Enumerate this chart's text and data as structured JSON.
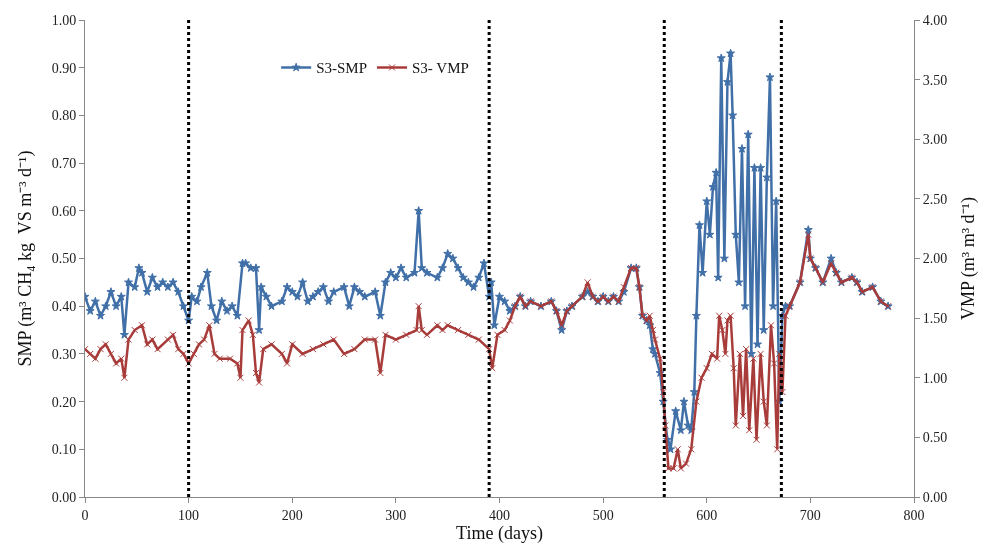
{
  "chart_data": {
    "type": "line",
    "xlabel": "Time (days)",
    "ylabel": "SMP (m³ CH₄ kg  VS m⁻³ d⁻¹)",
    "y2label": "VMP (m³ m³ d⁻¹)",
    "xlim": [
      0,
      800
    ],
    "xticks": [
      0,
      100,
      200,
      300,
      400,
      500,
      600,
      700,
      800
    ],
    "ylim": [
      0,
      1
    ],
    "yticks": [
      {
        "value": 0,
        "label": "0.00"
      },
      {
        "value": 0.1,
        "label": "0.10"
      },
      {
        "value": 0.2,
        "label": "0.20"
      },
      {
        "value": 0.3,
        "label": "0.30"
      },
      {
        "value": 0.4,
        "label": "0.40"
      },
      {
        "value": 0.5,
        "label": "0.50"
      },
      {
        "value": 0.6,
        "label": "0.60"
      },
      {
        "value": 0.7,
        "label": "0.70"
      },
      {
        "value": 0.8,
        "label": "0.80"
      },
      {
        "value": 0.9,
        "label": "0.90"
      },
      {
        "value": 1,
        "label": "1.00"
      }
    ],
    "y2lim": [
      0,
      4
    ],
    "y2ticks": [
      {
        "value": 0,
        "label": "0.00"
      },
      {
        "value": 0.5,
        "label": "0.50"
      },
      {
        "value": 1,
        "label": "1.00"
      },
      {
        "value": 1.5,
        "label": "1.50"
      },
      {
        "value": 2,
        "label": "2.00"
      },
      {
        "value": 2.5,
        "label": "2.50"
      },
      {
        "value": 3,
        "label": "3.00"
      },
      {
        "value": 3.5,
        "label": "3.50"
      },
      {
        "value": 4,
        "label": "4.00"
      }
    ],
    "legend": "top",
    "line_style": "solid",
    "ref_lines": [
      {
        "axis": "x",
        "value": 100,
        "color": "#000000",
        "line_style": "dotted"
      },
      {
        "axis": "x",
        "value": 390,
        "color": "#000000",
        "line_style": "dotted"
      },
      {
        "axis": "x",
        "value": 559,
        "color": "#000000",
        "line_style": "dotted"
      },
      {
        "axis": "x",
        "value": 672,
        "color": "#000000",
        "line_style": "dotted"
      }
    ],
    "series": [
      {
        "name": "S3-SMP",
        "color": "#4170a8",
        "marker": "star",
        "x": [
          0,
          5,
          10,
          15,
          20,
          25,
          30,
          35,
          38,
          42,
          48,
          52,
          55,
          60,
          65,
          70,
          75,
          80,
          85,
          90,
          95,
          100,
          103,
          108,
          112,
          118,
          122,
          127,
          132,
          137,
          142,
          147,
          152,
          155,
          160,
          165,
          168,
          170,
          175,
          180,
          190,
          195,
          200,
          205,
          210,
          215,
          220,
          225,
          230,
          235,
          240,
          250,
          255,
          260,
          265,
          270,
          280,
          285,
          290,
          295,
          300,
          305,
          310,
          318,
          322,
          325,
          330,
          340,
          345,
          350,
          355,
          360,
          365,
          370,
          375,
          380,
          385,
          390,
          392,
          395,
          400,
          405,
          410,
          415,
          420,
          425,
          430,
          440,
          450,
          455,
          460,
          465,
          470,
          480,
          485,
          490,
          495,
          500,
          505,
          510,
          515,
          520,
          527,
          532,
          535,
          538,
          542,
          545,
          548,
          550,
          555,
          558,
          562,
          565,
          570,
          575,
          578,
          582,
          585,
          588,
          590,
          593,
          596,
          600,
          603,
          606,
          609,
          611,
          614,
          617,
          620,
          623,
          625,
          628,
          631,
          634,
          637,
          640,
          643,
          646,
          649,
          652,
          655,
          658,
          661,
          664,
          667,
          670,
          673,
          676,
          680,
          690,
          698,
          700,
          705,
          712,
          720,
          725,
          730,
          740,
          745,
          750,
          760,
          768,
          775
        ],
        "values": [
          0.42,
          0.39,
          0.41,
          0.38,
          0.4,
          0.43,
          0.4,
          0.42,
          0.34,
          0.45,
          0.44,
          0.48,
          0.47,
          0.43,
          0.46,
          0.44,
          0.45,
          0.44,
          0.45,
          0.43,
          0.4,
          0.37,
          0.42,
          0.41,
          0.44,
          0.47,
          0.4,
          0.37,
          0.41,
          0.39,
          0.4,
          0.38,
          0.49,
          0.49,
          0.48,
          0.48,
          0.35,
          0.44,
          0.42,
          0.4,
          0.41,
          0.44,
          0.43,
          0.42,
          0.45,
          0.41,
          0.42,
          0.43,
          0.44,
          0.41,
          0.43,
          0.44,
          0.4,
          0.44,
          0.43,
          0.42,
          0.43,
          0.38,
          0.45,
          0.47,
          0.46,
          0.48,
          0.46,
          0.47,
          0.6,
          0.48,
          0.47,
          0.46,
          0.48,
          0.51,
          0.5,
          0.48,
          0.46,
          0.45,
          0.44,
          0.46,
          0.49,
          0.42,
          0.45,
          0.36,
          0.42,
          0.41,
          0.39,
          0.4,
          0.42,
          0.4,
          0.41,
          0.4,
          0.41,
          0.39,
          0.35,
          0.39,
          0.4,
          0.42,
          0.43,
          0.42,
          0.41,
          0.42,
          0.41,
          0.42,
          0.41,
          0.43,
          0.48,
          0.48,
          0.44,
          0.38,
          0.37,
          0.36,
          0.31,
          0.3,
          0.26,
          0.2,
          0.12,
          0.1,
          0.18,
          0.14,
          0.2,
          0.15,
          0.14,
          0.22,
          0.38,
          0.57,
          0.47,
          0.62,
          0.55,
          0.65,
          0.68,
          0.46,
          0.92,
          0.5,
          0.87,
          0.93,
          0.8,
          0.55,
          0.45,
          0.73,
          0.4,
          0.76,
          0.3,
          0.69,
          0.32,
          0.69,
          0.35,
          0.67,
          0.88,
          0.4,
          0.62,
          0.2,
          0.38,
          0.4,
          0.4,
          0.45,
          0.56,
          0.5,
          0.48,
          0.45,
          0.5,
          0.47,
          0.45,
          0.46,
          0.45,
          0.43,
          0.44,
          0.41,
          0.4
        ]
      },
      {
        "name": "S3- VMP",
        "color": "#a83c3a",
        "marker": "cross",
        "axis": "y2",
        "x": [
          0,
          5,
          10,
          15,
          20,
          25,
          30,
          35,
          38,
          42,
          48,
          55,
          60,
          65,
          70,
          80,
          85,
          90,
          95,
          100,
          105,
          110,
          115,
          120,
          125,
          130,
          140,
          147,
          150,
          152,
          158,
          162,
          165,
          168,
          172,
          180,
          190,
          195,
          200,
          210,
          220,
          230,
          240,
          250,
          260,
          270,
          280,
          285,
          290,
          300,
          310,
          320,
          322,
          325,
          330,
          340,
          345,
          350,
          360,
          370,
          380,
          390,
          393,
          398,
          405,
          410,
          415,
          420,
          425,
          430,
          440,
          450,
          455,
          460,
          465,
          470,
          480,
          485,
          490,
          495,
          500,
          505,
          510,
          515,
          520,
          527,
          532,
          535,
          538,
          542,
          545,
          548,
          550,
          555,
          558,
          560,
          563,
          568,
          572,
          575,
          580,
          585,
          590,
          595,
          600,
          605,
          610,
          612,
          615,
          618,
          620,
          623,
          626,
          628,
          632,
          635,
          638,
          641,
          645,
          648,
          652,
          655,
          658,
          662,
          665,
          668,
          670,
          673,
          676,
          680,
          690,
          698,
          700,
          705,
          712,
          720,
          725,
          730,
          740,
          745,
          750,
          760,
          768,
          775
        ],
        "values": [
          1.24,
          1.2,
          1.16,
          1.24,
          1.28,
          1.2,
          1.12,
          1.16,
          1.0,
          1.32,
          1.4,
          1.44,
          1.28,
          1.32,
          1.24,
          1.32,
          1.36,
          1.24,
          1.2,
          1.12,
          1.2,
          1.28,
          1.32,
          1.44,
          1.2,
          1.16,
          1.16,
          1.12,
          1.0,
          1.4,
          1.48,
          1.36,
          1.04,
          0.96,
          1.24,
          1.28,
          1.2,
          1.12,
          1.28,
          1.2,
          1.24,
          1.28,
          1.32,
          1.2,
          1.24,
          1.32,
          1.32,
          1.04,
          1.36,
          1.32,
          1.36,
          1.4,
          1.6,
          1.4,
          1.36,
          1.44,
          1.4,
          1.44,
          1.4,
          1.36,
          1.32,
          1.24,
          1.08,
          1.36,
          1.4,
          1.48,
          1.6,
          1.68,
          1.6,
          1.64,
          1.6,
          1.64,
          1.56,
          1.44,
          1.56,
          1.6,
          1.68,
          1.8,
          1.68,
          1.64,
          1.68,
          1.64,
          1.68,
          1.64,
          1.76,
          1.92,
          1.92,
          1.76,
          1.52,
          1.48,
          1.52,
          1.4,
          1.32,
          1.16,
          0.88,
          0.6,
          0.24,
          0.24,
          0.4,
          0.24,
          0.28,
          0.4,
          0.8,
          1.0,
          1.08,
          1.2,
          1.16,
          1.52,
          1.4,
          1.2,
          1.48,
          1.52,
          1.08,
          0.6,
          1.2,
          0.68,
          1.24,
          0.56,
          1.16,
          0.48,
          1.2,
          0.8,
          0.6,
          1.44,
          1.12,
          0.4,
          1.2,
          0.88,
          1.52,
          1.6,
          1.8,
          2.2,
          2.0,
          1.92,
          1.8,
          1.96,
          1.88,
          1.8,
          1.84,
          1.8,
          1.72,
          1.76,
          1.64,
          1.6
        ]
      }
    ]
  }
}
